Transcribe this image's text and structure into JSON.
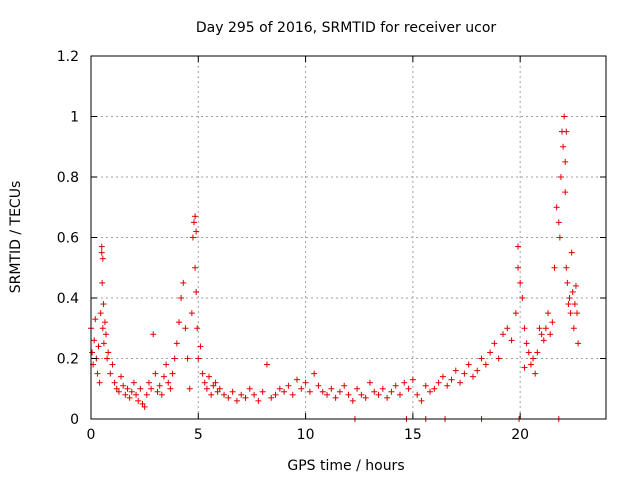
{
  "chart_data": {
    "type": "scatter",
    "title": "Day 295 of 2016, SRMTID for receiver ucor",
    "xlabel": "GPS time / hours",
    "ylabel": "SRMTID / TECUs",
    "xlim": [
      0,
      24
    ],
    "ylim": [
      0,
      1.2
    ],
    "xticks": [
      0,
      5,
      10,
      15,
      20
    ],
    "xtick_labels": [
      "0",
      "5",
      "10",
      "15",
      "20"
    ],
    "yticks": [
      0,
      0.2,
      0.4,
      0.6,
      0.8,
      1.0,
      1.2
    ],
    "ytick_labels": [
      "0",
      "0.2",
      "0.4",
      "0.6",
      "0.8",
      "1",
      "1.2"
    ],
    "grid": true,
    "marker": "+",
    "color": "#e00000",
    "series": [
      {
        "name": "SRMTID",
        "x": [
          0.0,
          0.05,
          0.1,
          0.15,
          0.2,
          0.25,
          0.3,
          0.35,
          0.4,
          0.45,
          0.5,
          0.52,
          0.55,
          0.58,
          0.6,
          0.65,
          0.7,
          0.75,
          0.8,
          0.9,
          1.0,
          1.1,
          1.2,
          1.3,
          1.4,
          1.5,
          1.6,
          1.7,
          1.8,
          1.9,
          2.0,
          2.1,
          2.2,
          2.3,
          2.4,
          2.5,
          2.6,
          2.7,
          2.8,
          2.9,
          3.0,
          3.1,
          3.2,
          3.3,
          3.4,
          3.5,
          3.6,
          3.7,
          3.8,
          3.9,
          4.0,
          4.1,
          4.2,
          4.3,
          4.4,
          4.5,
          4.6,
          4.7,
          4.75,
          4.8,
          4.85,
          4.9,
          4.95,
          5.0,
          5.1,
          5.2,
          5.3,
          5.4,
          5.5,
          5.6,
          5.7,
          5.8,
          5.9,
          6.0,
          6.2,
          6.4,
          6.6,
          6.8,
          7.0,
          7.2,
          7.4,
          7.6,
          7.8,
          8.0,
          8.2,
          8.4,
          8.6,
          8.8,
          9.0,
          9.2,
          9.4,
          9.6,
          9.8,
          10.0,
          10.2,
          10.4,
          10.6,
          10.8,
          11.0,
          11.2,
          11.4,
          11.6,
          11.8,
          12.0,
          12.2,
          12.4,
          12.6,
          12.8,
          13.0,
          13.2,
          13.4,
          13.6,
          13.8,
          14.0,
          14.2,
          14.4,
          14.6,
          14.8,
          15.0,
          15.2,
          15.4,
          15.6,
          15.8,
          16.0,
          16.2,
          16.4,
          16.6,
          16.8,
          17.0,
          17.2,
          17.4,
          17.6,
          17.8,
          18.0,
          18.2,
          18.4,
          18.6,
          18.8,
          19.0,
          19.2,
          19.4,
          19.6,
          19.8,
          19.9,
          20.0,
          20.1,
          20.2,
          20.3,
          20.4,
          20.5,
          20.6,
          20.7,
          20.8,
          20.9,
          21.0,
          21.1,
          21.2,
          21.3,
          21.4,
          21.5,
          21.6,
          21.7,
          21.8,
          21.85,
          21.9,
          21.95,
          22.0,
          22.05,
          22.1,
          22.15,
          22.2,
          22.25,
          22.3,
          22.35,
          22.4,
          22.45,
          22.5,
          22.55,
          22.6,
          22.65,
          22.7,
          0.5,
          0.55,
          4.85,
          4.9,
          22.1,
          22.15,
          19.9,
          20.2,
          12.3,
          14.7,
          15.6,
          16.5,
          18.2,
          19.95,
          21.8
        ],
        "y": [
          0.3,
          0.22,
          0.18,
          0.26,
          0.33,
          0.2,
          0.15,
          0.24,
          0.12,
          0.35,
          0.55,
          0.45,
          0.3,
          0.38,
          0.25,
          0.32,
          0.28,
          0.2,
          0.22,
          0.15,
          0.18,
          0.12,
          0.1,
          0.09,
          0.14,
          0.11,
          0.08,
          0.1,
          0.07,
          0.09,
          0.12,
          0.08,
          0.06,
          0.1,
          0.05,
          0.04,
          0.08,
          0.12,
          0.1,
          0.28,
          0.15,
          0.09,
          0.11,
          0.08,
          0.14,
          0.18,
          0.12,
          0.1,
          0.15,
          0.2,
          0.25,
          0.32,
          0.4,
          0.45,
          0.3,
          0.2,
          0.1,
          0.35,
          0.6,
          0.65,
          0.5,
          0.42,
          0.3,
          0.2,
          0.24,
          0.15,
          0.12,
          0.1,
          0.14,
          0.08,
          0.11,
          0.12,
          0.09,
          0.1,
          0.08,
          0.07,
          0.09,
          0.06,
          0.08,
          0.07,
          0.1,
          0.08,
          0.06,
          0.09,
          0.18,
          0.07,
          0.08,
          0.1,
          0.09,
          0.11,
          0.08,
          0.13,
          0.1,
          0.12,
          0.09,
          0.15,
          0.11,
          0.09,
          0.08,
          0.1,
          0.07,
          0.09,
          0.11,
          0.08,
          0.06,
          0.1,
          0.08,
          0.07,
          0.12,
          0.09,
          0.08,
          0.1,
          0.07,
          0.09,
          0.11,
          0.08,
          0.12,
          0.1,
          0.13,
          0.08,
          0.06,
          0.11,
          0.09,
          0.1,
          0.12,
          0.14,
          0.11,
          0.13,
          0.16,
          0.12,
          0.15,
          0.18,
          0.14,
          0.16,
          0.2,
          0.18,
          0.22,
          0.25,
          0.2,
          0.28,
          0.3,
          0.26,
          0.35,
          0.5,
          0.45,
          0.4,
          0.3,
          0.25,
          0.22,
          0.18,
          0.2,
          0.15,
          0.22,
          0.3,
          0.28,
          0.26,
          0.3,
          0.35,
          0.28,
          0.32,
          0.5,
          0.7,
          0.65,
          0.6,
          0.8,
          0.95,
          0.9,
          1.0,
          0.85,
          0.5,
          0.45,
          0.38,
          0.4,
          0.35,
          0.55,
          0.42,
          0.3,
          0.38,
          0.44,
          0.35,
          0.25,
          0.57,
          0.53,
          0.67,
          0.62,
          0.75,
          0.95,
          0.57,
          0.17,
          0.0,
          0.0,
          0.0,
          0.0,
          0.0,
          0.0,
          0.0
        ]
      }
    ]
  }
}
